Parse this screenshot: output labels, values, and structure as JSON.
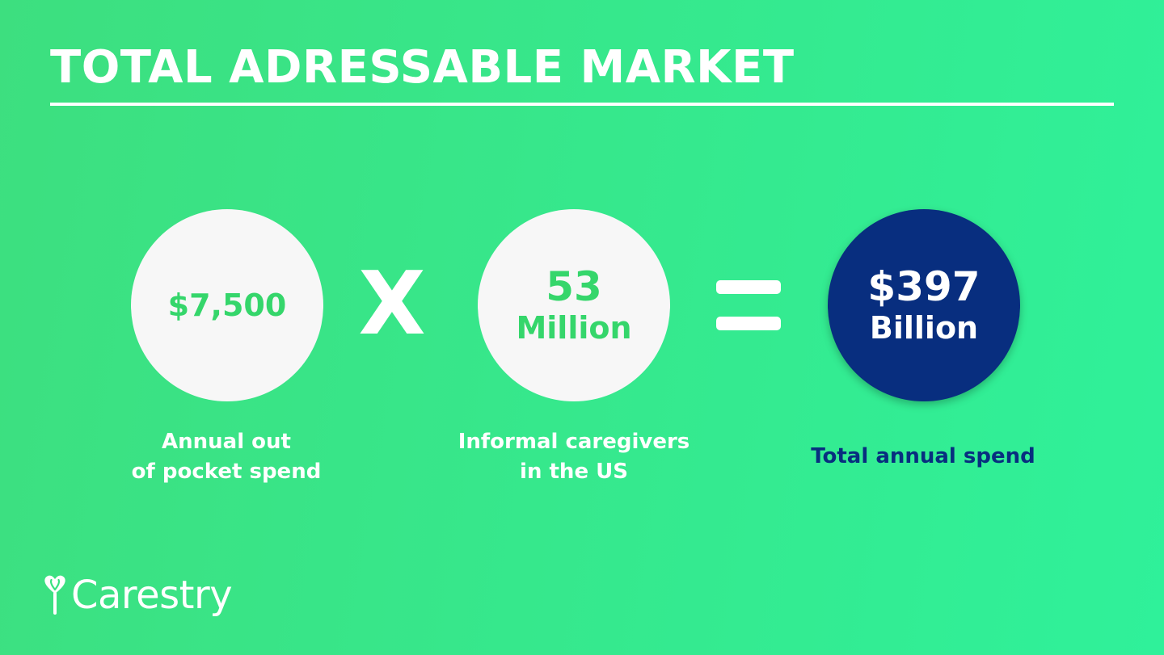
{
  "colors": {
    "background_left": "#3ddf7f",
    "background_right": "#2ff19a",
    "accent_green": "#35d66b",
    "navy": "#082e7f",
    "circle_light": "#f7f7f7",
    "white": "#ffffff"
  },
  "header": {
    "title": "TOTAL ADRESSABLE MARKET"
  },
  "equation": {
    "term1": {
      "value": "$7,500",
      "caption_line1": "Annual out",
      "caption_line2": "of pocket spend"
    },
    "operator_multiply": "X",
    "term2": {
      "value_top": "53",
      "value_bottom": "Million",
      "caption_line1": "Informal caregivers",
      "caption_line2": "in the US"
    },
    "operator_equals": "equals-sign",
    "result": {
      "value_top": "$397",
      "value_bottom": "Billion",
      "caption": "Total annual spend"
    }
  },
  "brand": {
    "name": "Carestry",
    "logo_icon": "heart-sprout-icon"
  }
}
